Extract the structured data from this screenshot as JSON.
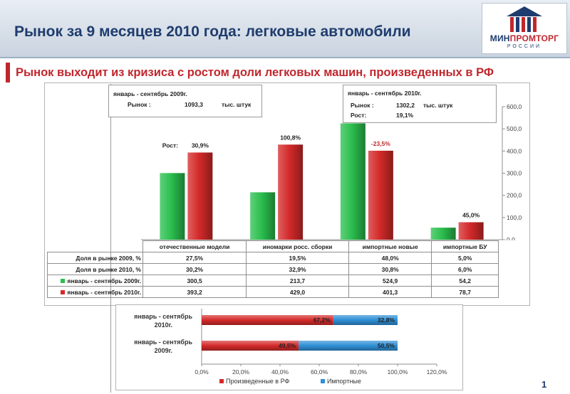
{
  "header": {
    "title": "Рынок за 9 месяцев 2010 года: легковые автомобили",
    "logo_name_part1": "МИН",
    "logo_name_part2": "ПРОМТОРГ",
    "logo_sub": "РОССИИ"
  },
  "subtitle": "Рынок выходит из кризиса с ростом доли легковых машин, произведенных в РФ",
  "page_number": "1",
  "colors": {
    "red": "#d42a2a",
    "green": "#2bbf4e",
    "blue": "#2f8fd6",
    "navy": "#1f3c6e"
  },
  "info_2009": {
    "period": "январь - сентябрь 2009г.",
    "market_label": "Рынок :",
    "market_value": "1093,3",
    "unit": "тыс. штук"
  },
  "info_2010": {
    "period": "январь - сентябрь 2010г.",
    "market_label": "Рынок :",
    "market_value": "1302,2",
    "unit": "тыс. штук",
    "growth_label": "Рост:",
    "growth_value": "19,1%"
  },
  "growth_label": "Рост:",
  "table": {
    "row_labels": [
      "Доля в рынке 2009, %",
      "Доля в рынке 2010, %",
      "январь - сентябрь 2009г.",
      "январь - сентябрь 2010г."
    ],
    "share_2009": [
      "27,5%",
      "19,5%",
      "48,0%",
      "5,0%"
    ],
    "share_2010": [
      "30,2%",
      "32,9%",
      "30,8%",
      "6,0%"
    ],
    "volume_2009": [
      "300,5",
      "213,7",
      "524,9",
      "54,2"
    ],
    "volume_2010": [
      "393,2",
      "429,0",
      "401,3",
      "78,7"
    ]
  },
  "chart_data": [
    {
      "type": "bar",
      "categories": [
        "отечественные модели",
        "иномарки росс. сборки",
        "импортные новые",
        "импортные БУ"
      ],
      "series": [
        {
          "name": "январь - сентябрь 2009г.",
          "values": [
            300.5,
            213.7,
            524.9,
            54.2
          ],
          "color": "#2bbf4e"
        },
        {
          "name": "январь - сентябрь 2010г.",
          "values": [
            393.2,
            429.0,
            401.3,
            78.7
          ],
          "color": "#d42a2a"
        }
      ],
      "growth_labels": [
        "30,9%",
        "100,8%",
        "-23,5%",
        "45,0%"
      ],
      "ylim": [
        0,
        600
      ],
      "y_ticks": [
        "0,0",
        "100,0",
        "200,0",
        "300,0",
        "400,0",
        "500,0",
        "600,0"
      ],
      "y_axis_position": "right",
      "grid": false
    },
    {
      "type": "bar",
      "orientation": "horizontal",
      "stacked": true,
      "categories": [
        "январь - сентябрь 2010г.",
        "январь - сентябрь 2009г."
      ],
      "series": [
        {
          "name": "Произведенные в РФ",
          "values": [
            67.2,
            49.5
          ],
          "labels": [
            "67,2%",
            "49,5%"
          ],
          "color": "#d42a2a"
        },
        {
          "name": "Импортные",
          "values": [
            32.8,
            50.5
          ],
          "labels": [
            "32,8%",
            "50,5%"
          ],
          "color": "#2f8fd6"
        }
      ],
      "xlim": [
        0,
        120
      ],
      "x_ticks": [
        "0,0%",
        "20,0%",
        "40,0%",
        "60,0%",
        "80,0%",
        "100,0%",
        "120,0%"
      ],
      "legend_position": "bottom"
    }
  ]
}
